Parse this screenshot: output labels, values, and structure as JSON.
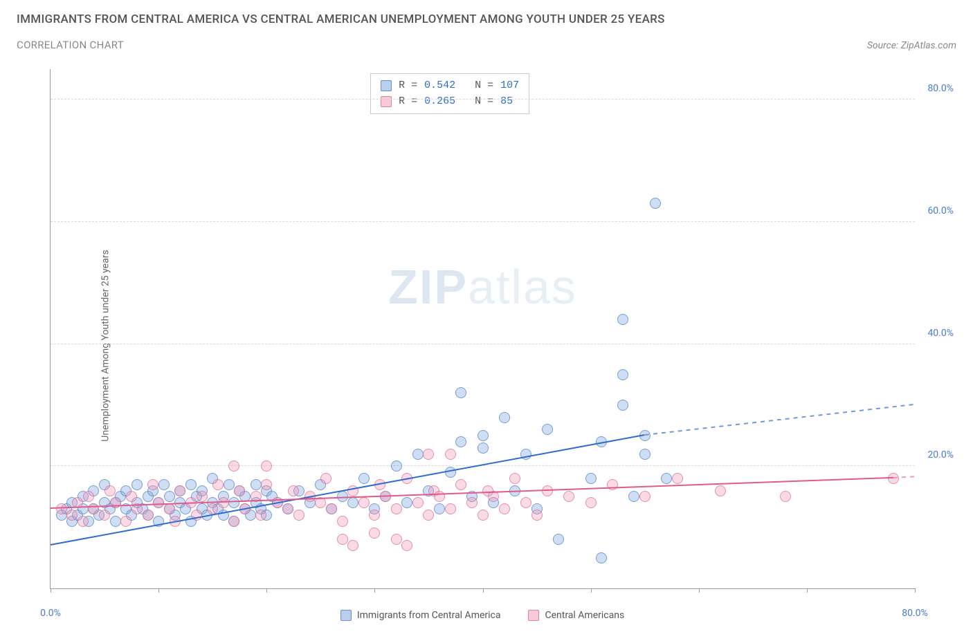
{
  "header": {
    "title": "IMMIGRANTS FROM CENTRAL AMERICA VS CENTRAL AMERICAN UNEMPLOYMENT AMONG YOUTH UNDER 25 YEARS",
    "subtitle": "CORRELATION CHART",
    "source": "Source: ZipAtlas.com"
  },
  "chart": {
    "type": "scatter",
    "ylabel": "Unemployment Among Youth under 25 years",
    "xlim": [
      0,
      80
    ],
    "ylim": [
      0,
      85
    ],
    "xtick_positions": [
      0,
      10,
      20,
      30,
      40,
      50,
      60,
      70,
      80
    ],
    "xtick_labels": {
      "0": "0.0%",
      "80": "80.0%"
    },
    "ytick_positions": [
      20,
      40,
      60,
      80
    ],
    "ytick_labels": {
      "20": "20.0%",
      "40": "40.0%",
      "60": "60.0%",
      "80": "80.0%"
    },
    "background_color": "#ffffff",
    "grid_color": "#d8d8d8",
    "axis_color": "#999999",
    "label_color": "#4a7bd0",
    "watermark": {
      "bold": "ZIP",
      "light": "atlas"
    },
    "marker_radius": 8,
    "series": [
      {
        "name": "Immigrants from Central America",
        "color_fill": "rgba(120,160,220,0.35)",
        "color_stroke": "rgba(80,130,200,0.7)",
        "class": "blue",
        "R": "0.542",
        "N": "107",
        "trend": {
          "x1": 0,
          "y1": 7,
          "x2": 55,
          "y2": 25,
          "x2_dash": 80,
          "y2_dash": 30,
          "color": "#2e6cd0"
        },
        "points": [
          [
            1,
            12
          ],
          [
            1.5,
            13
          ],
          [
            2,
            11
          ],
          [
            2,
            14
          ],
          [
            2.5,
            12
          ],
          [
            3,
            13
          ],
          [
            3,
            15
          ],
          [
            3.5,
            11
          ],
          [
            4,
            13
          ],
          [
            4,
            16
          ],
          [
            4.5,
            12
          ],
          [
            5,
            14
          ],
          [
            5,
            17
          ],
          [
            5.5,
            13
          ],
          [
            6,
            14
          ],
          [
            6,
            11
          ],
          [
            6.5,
            15
          ],
          [
            7,
            13
          ],
          [
            7,
            16
          ],
          [
            7.5,
            12
          ],
          [
            8,
            14
          ],
          [
            8,
            17
          ],
          [
            8.5,
            13
          ],
          [
            9,
            15
          ],
          [
            9,
            12
          ],
          [
            9.5,
            16
          ],
          [
            10,
            14
          ],
          [
            10,
            11
          ],
          [
            10.5,
            17
          ],
          [
            11,
            13
          ],
          [
            11,
            15
          ],
          [
            11.5,
            12
          ],
          [
            12,
            16
          ],
          [
            12,
            14
          ],
          [
            12.5,
            13
          ],
          [
            13,
            17
          ],
          [
            13,
            11
          ],
          [
            13.5,
            15
          ],
          [
            14,
            13
          ],
          [
            14,
            16
          ],
          [
            14.5,
            12
          ],
          [
            15,
            14
          ],
          [
            15,
            18
          ],
          [
            15.5,
            13
          ],
          [
            16,
            15
          ],
          [
            16,
            12
          ],
          [
            16.5,
            17
          ],
          [
            17,
            14
          ],
          [
            17,
            11
          ],
          [
            17.5,
            16
          ],
          [
            18,
            13
          ],
          [
            18,
            15
          ],
          [
            18.5,
            12
          ],
          [
            19,
            17
          ],
          [
            19,
            14
          ],
          [
            19.5,
            13
          ],
          [
            20,
            16
          ],
          [
            20,
            12
          ],
          [
            20.5,
            15
          ],
          [
            21,
            14
          ],
          [
            22,
            13
          ],
          [
            23,
            16
          ],
          [
            24,
            14
          ],
          [
            25,
            17
          ],
          [
            26,
            13
          ],
          [
            27,
            15
          ],
          [
            28,
            14
          ],
          [
            29,
            18
          ],
          [
            30,
            13
          ],
          [
            31,
            15
          ],
          [
            32,
            20
          ],
          [
            33,
            14
          ],
          [
            34,
            22
          ],
          [
            35,
            16
          ],
          [
            36,
            13
          ],
          [
            37,
            19
          ],
          [
            38,
            24
          ],
          [
            38,
            32
          ],
          [
            39,
            15
          ],
          [
            40,
            23
          ],
          [
            40,
            25
          ],
          [
            41,
            14
          ],
          [
            42,
            28
          ],
          [
            43,
            16
          ],
          [
            44,
            22
          ],
          [
            45,
            13
          ],
          [
            46,
            26
          ],
          [
            47,
            8
          ],
          [
            50,
            18
          ],
          [
            51,
            24
          ],
          [
            51,
            5
          ],
          [
            53,
            35
          ],
          [
            53,
            30
          ],
          [
            53,
            44
          ],
          [
            54,
            15
          ],
          [
            55,
            22
          ],
          [
            55,
            25
          ],
          [
            56,
            63
          ],
          [
            57,
            18
          ]
        ]
      },
      {
        "name": "Central Americans",
        "color_fill": "rgba(240,150,180,0.35)",
        "color_stroke": "rgba(220,110,150,0.7)",
        "class": "pink",
        "R": "0.265",
        "N": " 85",
        "trend": {
          "x1": 0,
          "y1": 13,
          "x2": 78,
          "y2": 18,
          "x2_dash": 80,
          "y2_dash": 18.2,
          "color": "#e05a8c"
        },
        "points": [
          [
            1,
            13
          ],
          [
            2,
            12
          ],
          [
            2.5,
            14
          ],
          [
            3,
            11
          ],
          [
            3.5,
            15
          ],
          [
            4,
            13
          ],
          [
            5,
            12
          ],
          [
            5.5,
            16
          ],
          [
            6,
            14
          ],
          [
            7,
            11
          ],
          [
            7.5,
            15
          ],
          [
            8,
            13
          ],
          [
            9,
            12
          ],
          [
            9.5,
            17
          ],
          [
            10,
            14
          ],
          [
            11,
            13
          ],
          [
            11.5,
            11
          ],
          [
            12,
            16
          ],
          [
            13,
            14
          ],
          [
            13.5,
            12
          ],
          [
            14,
            15
          ],
          [
            15,
            13
          ],
          [
            15.5,
            17
          ],
          [
            16,
            14
          ],
          [
            17,
            11
          ],
          [
            17,
            20
          ],
          [
            17.5,
            16
          ],
          [
            18,
            13
          ],
          [
            19,
            15
          ],
          [
            19.5,
            12
          ],
          [
            20,
            17
          ],
          [
            20,
            20
          ],
          [
            21,
            14
          ],
          [
            22,
            13
          ],
          [
            22.5,
            16
          ],
          [
            23,
            12
          ],
          [
            24,
            15
          ],
          [
            25,
            14
          ],
          [
            25.5,
            18
          ],
          [
            26,
            13
          ],
          [
            27,
            11
          ],
          [
            27,
            8
          ],
          [
            28,
            16
          ],
          [
            28,
            7
          ],
          [
            29,
            14
          ],
          [
            30,
            12
          ],
          [
            30,
            9
          ],
          [
            30.5,
            17
          ],
          [
            31,
            15
          ],
          [
            32,
            13
          ],
          [
            32,
            8
          ],
          [
            33,
            18
          ],
          [
            33,
            7
          ],
          [
            34,
            14
          ],
          [
            35,
            12
          ],
          [
            35,
            22
          ],
          [
            35.5,
            16
          ],
          [
            36,
            15
          ],
          [
            37,
            13
          ],
          [
            37,
            22
          ],
          [
            38,
            17
          ],
          [
            39,
            14
          ],
          [
            40,
            12
          ],
          [
            40.5,
            16
          ],
          [
            41,
            15
          ],
          [
            42,
            13
          ],
          [
            43,
            18
          ],
          [
            44,
            14
          ],
          [
            45,
            12
          ],
          [
            46,
            16
          ],
          [
            48,
            15
          ],
          [
            50,
            14
          ],
          [
            52,
            17
          ],
          [
            55,
            15
          ],
          [
            58,
            18
          ],
          [
            62,
            16
          ],
          [
            68,
            15
          ],
          [
            78,
            18
          ]
        ]
      }
    ]
  }
}
